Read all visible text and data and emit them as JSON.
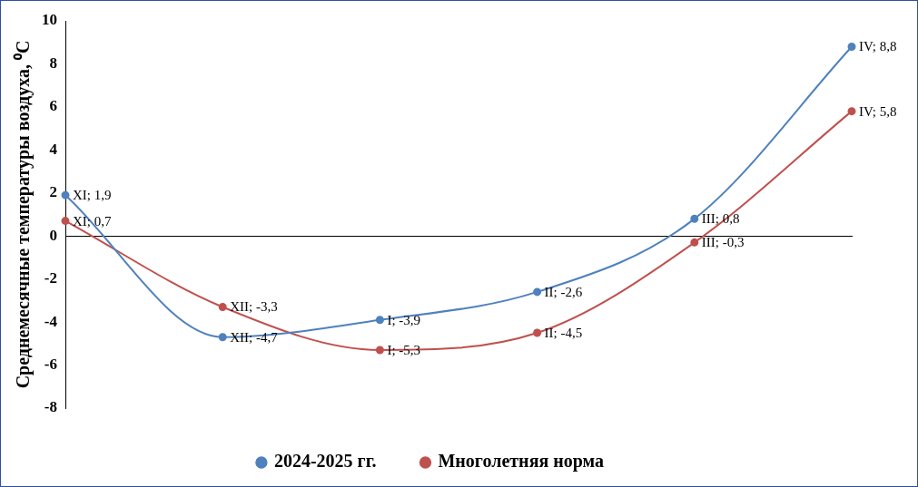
{
  "chart_data": {
    "type": "line",
    "ylabel": "Среднемесячные температуры воздуха, ⁰С",
    "categories": [
      null,
      null,
      null,
      null,
      null,
      null
    ],
    "series": [
      {
        "name": "2024-2025 гг.",
        "color": "#4f81bd",
        "values": [
          1.9,
          -4.7,
          -3.9,
          -2.6,
          0.8,
          8.8
        ],
        "value_labels": [
          "XI; 1,9",
          "XII; -4,7",
          "I; -3,9",
          "II; -2,6",
          "III; 0,8",
          "IV; 8,8"
        ]
      },
      {
        "name": "Многолетняя норма",
        "color": "#c0504d",
        "values": [
          0.7,
          -3.3,
          -5.3,
          -4.5,
          -0.3,
          5.8
        ],
        "value_labels": [
          "XI; 0,7",
          "XII; -3,3",
          "I; -5,3",
          "II; -4,5",
          "III; -0,3",
          "IV; 5,8"
        ]
      }
    ],
    "ylim": [
      -8,
      10
    ],
    "yticks": [
      -8,
      -6,
      -4,
      -2,
      0,
      2,
      4,
      6,
      8,
      10
    ],
    "legend": "bottom",
    "marker": "circle",
    "tick_labels": "y"
  }
}
